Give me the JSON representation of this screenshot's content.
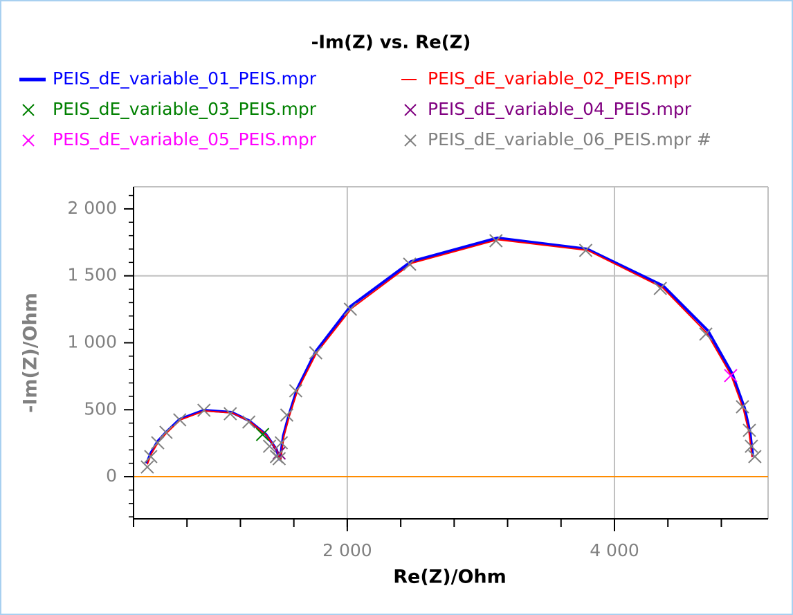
{
  "chart_data": {
    "type": "line",
    "title": "-Im(Z) vs. Re(Z)",
    "xlabel": "Re(Z)/Ohm",
    "ylabel": "-Im(Z)/Ohm",
    "xlim": [
      400,
      5150
    ],
    "ylim": [
      -315,
      2165
    ],
    "xticks": [
      {
        "value": 2000,
        "label": "2 000"
      },
      {
        "value": 4000,
        "label": "4 000"
      }
    ],
    "yticks": [
      0,
      500,
      {
        "value": 1000,
        "label": "1 000"
      },
      {
        "value": 1500,
        "label": "1 500"
      },
      {
        "value": 2000,
        "label": "2 000"
      }
    ],
    "x_minor_step": 400,
    "y_minor_step": 100,
    "grid_x": [
      2000,
      4000
    ],
    "grid_y": [
      1500
    ],
    "reference_line": {
      "y": 0,
      "color": "#ff8c00"
    },
    "series": [
      {
        "name": "PEIS_dE_variable_01_PEIS.mpr",
        "color": "#0000ff",
        "style": "line",
        "x": [
          498,
          529,
          581,
          643,
          746,
          927,
          1134,
          1263,
          1392,
          1470,
          1496,
          1521,
          1563,
          1625,
          1764,
          2023,
          2478,
          3123,
          3795,
          4364,
          4700,
          4881,
          4974,
          5015,
          5036
        ],
        "values": [
          98,
          176,
          264,
          331,
          429,
          496,
          481,
          419,
          315,
          202,
          124,
          305,
          460,
          656,
          935,
          1271,
          1607,
          1783,
          1700,
          1426,
          1090,
          770,
          512,
          331,
          150
        ]
      },
      {
        "name": "PEIS_dE_variable_02_PEIS.mpr",
        "color": "#ff0000",
        "style": "line",
        "x": [
          503,
          533,
          585,
          647,
          750,
          930,
          1137,
          1266,
          1395,
          1473,
          1500,
          1525,
          1567,
          1630,
          1770,
          2030,
          2485,
          3128,
          3800,
          4360,
          4690,
          4872,
          4965,
          5008,
          5030
        ],
        "values": [
          92,
          170,
          258,
          326,
          424,
          491,
          476,
          414,
          310,
          197,
          120,
          300,
          455,
          650,
          925,
          1255,
          1595,
          1770,
          1690,
          1412,
          1075,
          760,
          505,
          325,
          145
        ]
      },
      {
        "name": "PEIS_dE_variable_03_PEIS.mpr",
        "color": "#008000",
        "style": "marker",
        "x": [
          1366
        ],
        "values": [
          315
        ]
      },
      {
        "name": "PEIS_dE_variable_04_PEIS.mpr",
        "color": "#800080",
        "style": "marker",
        "x": [
          1490
        ],
        "values": [
          176
        ]
      },
      {
        "name": "PEIS_dE_variable_05_PEIS.mpr",
        "color": "#ff00ff",
        "style": "marker",
        "x": [
          4870
        ],
        "values": [
          755
        ]
      },
      {
        "name": "PEIS_dE_variable_06_PEIS.mpr #",
        "color": "#808080",
        "style": "marker",
        "x": [
          503,
          529,
          581,
          643,
          746,
          927,
          1124,
          1263,
          1418,
          1470,
          1490,
          1506,
          1547,
          1614,
          1764,
          2023,
          2467,
          3113,
          3785,
          4343,
          4684,
          4958,
          5010,
          5025,
          5051
        ],
        "values": [
          72,
          150,
          253,
          331,
          424,
          496,
          470,
          408,
          227,
          150,
          134,
          253,
          460,
          641,
          925,
          1251,
          1587,
          1762,
          1690,
          1406,
          1065,
          522,
          346,
          227,
          150
        ]
      }
    ]
  }
}
